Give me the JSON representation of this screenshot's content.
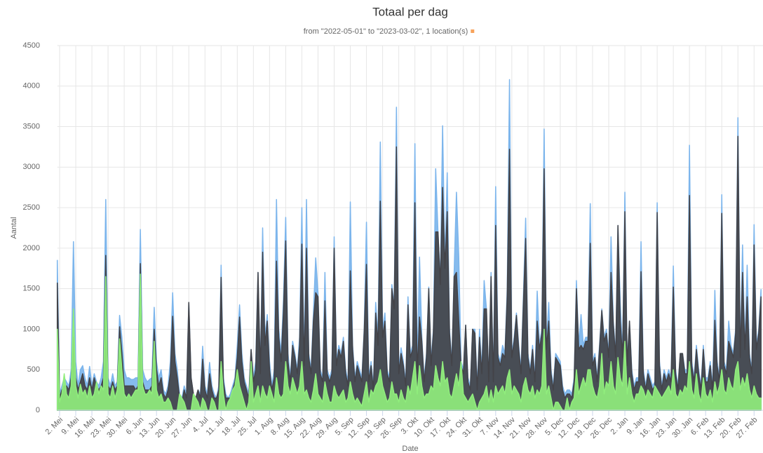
{
  "chart_data": {
    "type": "area",
    "title": "Totaal per dag",
    "subtitle": "from \"2022-05-01\" to \"2023-03-02\", 1 location(s)",
    "xlabel": "Date",
    "ylabel": "Aantal",
    "ylim": [
      0,
      4500
    ],
    "yticks": [
      0,
      500,
      1000,
      1500,
      2000,
      2500,
      3000,
      3500,
      4000,
      4500
    ],
    "grid": true,
    "categories": [
      null,
      "2. Mei",
      null,
      null,
      null,
      null,
      null,
      null,
      "9. Mei",
      null,
      null,
      null,
      null,
      null,
      null,
      "16. Mei",
      null,
      null,
      null,
      null,
      null,
      null,
      "23. Mei",
      null,
      null,
      null,
      null,
      null,
      null,
      "30. Mei",
      null,
      null,
      null,
      null,
      null,
      null,
      "6. Jun",
      null,
      null,
      null,
      null,
      null,
      null,
      "13. Jun",
      null,
      null,
      null,
      null,
      null,
      null,
      "20. Jun",
      null,
      null,
      null,
      null,
      null,
      null,
      "27. Jun",
      null,
      null,
      null,
      null,
      null,
      null,
      "4. Jul",
      null,
      null,
      null,
      null,
      null,
      null,
      "11. Jul",
      null,
      null,
      null,
      null,
      null,
      null,
      "18. Jul",
      null,
      null,
      null,
      null,
      null,
      null,
      "25. Jul",
      null,
      null,
      null,
      null,
      null,
      null,
      "1. Aug",
      null,
      null,
      null,
      null,
      null,
      null,
      "8. Aug",
      null,
      null,
      null,
      null,
      null,
      null,
      "15. Aug",
      null,
      null,
      null,
      null,
      null,
      null,
      "22. Aug",
      null,
      null,
      null,
      null,
      null,
      null,
      "29. Aug",
      null,
      null,
      null,
      null,
      null,
      null,
      "5. Sep",
      null,
      null,
      null,
      null,
      null,
      null,
      "12. Sep",
      null,
      null,
      null,
      null,
      null,
      null,
      "19. Sep",
      null,
      null,
      null,
      null,
      null,
      null,
      "26. Sep",
      null,
      null,
      null,
      null,
      null,
      null,
      "3. Okt",
      null,
      null,
      null,
      null,
      null,
      null,
      "10. Okt",
      null,
      null,
      null,
      null,
      null,
      null,
      "17. Okt",
      null,
      null,
      null,
      null,
      null,
      null,
      "24. Okt",
      null,
      null,
      null,
      null,
      null,
      null,
      "31. Okt",
      null,
      null,
      null,
      null,
      null,
      null,
      "7. Nov",
      null,
      null,
      null,
      null,
      null,
      null,
      "14. Nov",
      null,
      null,
      null,
      null,
      null,
      null,
      "21. Nov",
      null,
      null,
      null,
      null,
      null,
      null,
      "28. Nov",
      null,
      null,
      null,
      null,
      null,
      null,
      "5. Dec",
      null,
      null,
      null,
      null,
      null,
      null,
      "12. Dec",
      null,
      null,
      null,
      null,
      null,
      null,
      "19. Dec",
      null,
      null,
      null,
      null,
      null,
      null,
      "26. Dec",
      null,
      null,
      null,
      null,
      null,
      null,
      "2. Jan",
      null,
      null,
      null,
      null,
      null,
      null,
      "9. Jan",
      null,
      null,
      null,
      null,
      null,
      null,
      "16. Jan",
      null,
      null,
      null,
      null,
      null,
      null,
      "23. Jan",
      null,
      null,
      null,
      null,
      null,
      null,
      "30. Jan",
      null,
      null,
      null,
      null,
      null,
      null,
      "6. Feb",
      null,
      null,
      null,
      null,
      null,
      null,
      "13. Feb",
      null,
      null,
      null,
      null,
      null,
      null,
      "20. Feb",
      null,
      null,
      null,
      null,
      null,
      null,
      "27. Feb",
      null,
      null,
      null
    ],
    "series": [
      {
        "color": "#7cb5ec",
        "values": [
          1850,
          200,
          300,
          400,
          350,
          300,
          500,
          2080,
          600,
          300,
          500,
          550,
          400,
          300,
          540,
          300,
          450,
          350,
          300,
          400,
          600,
          2600,
          400,
          300,
          450,
          300,
          350,
          1170,
          900,
          500,
          400,
          400,
          380,
          380,
          400,
          400,
          2230,
          500,
          400,
          350,
          380,
          400,
          1270,
          600,
          400,
          500,
          250,
          200,
          300,
          600,
          1450,
          700,
          500,
          200,
          150,
          300,
          200,
          1330,
          400,
          200,
          150,
          250,
          200,
          790,
          300,
          200,
          590,
          300,
          200,
          150,
          300,
          1790,
          400,
          200,
          150,
          200,
          300,
          400,
          800,
          1300,
          700,
          400,
          300,
          200,
          750,
          400,
          600,
          1700,
          500,
          2250,
          900,
          1180,
          600,
          300,
          500,
          2600,
          1000,
          700,
          1350,
          2380,
          700,
          400,
          850,
          700,
          500,
          900,
          2500,
          600,
          2600,
          700,
          500,
          1200,
          1880,
          1450,
          500,
          400,
          1700,
          500,
          400,
          500,
          2140,
          600,
          800,
          700,
          900,
          500,
          350,
          2570,
          800,
          400,
          600,
          500,
          400,
          1000,
          2320,
          400,
          600,
          300,
          1330,
          900,
          3310,
          1000,
          1200,
          500,
          400,
          1550,
          1300,
          3740,
          500,
          770,
          600,
          350,
          1400,
          700,
          800,
          3290,
          500,
          1890,
          900,
          400,
          700,
          1520,
          600,
          1000,
          2980,
          2200,
          1600,
          3510,
          1800,
          2930,
          1000,
          600,
          1700,
          2690,
          1900,
          600,
          500,
          1050,
          400,
          300,
          1000,
          1000,
          300,
          1000,
          500,
          1600,
          1250,
          400,
          1700,
          400,
          2760,
          700,
          600,
          800,
          700,
          1500,
          4080,
          700,
          900,
          1200,
          800,
          500,
          1400,
          2370,
          700,
          500,
          800,
          400,
          1470,
          800,
          1000,
          3470,
          800,
          1330,
          500,
          300,
          700,
          650,
          600,
          300,
          200,
          250,
          250,
          200,
          400,
          1600,
          800,
          1180,
          800,
          900,
          900,
          2550,
          600,
          700,
          400,
          800,
          1250,
          900,
          1000,
          700,
          2140,
          1100,
          700,
          2280,
          1330,
          700,
          2690,
          600,
          1100,
          500,
          300,
          400,
          400,
          2080,
          500,
          300,
          500,
          400,
          300,
          350,
          2560,
          600,
          300,
          500,
          400,
          500,
          400,
          1780,
          500,
          300,
          700,
          700,
          500,
          500,
          3270,
          600,
          400,
          800,
          500,
          300,
          800,
          400,
          400,
          600,
          300,
          1480,
          600,
          400,
          2660,
          600,
          500,
          1100,
          800,
          700,
          1000,
          3610,
          700,
          2040,
          800,
          1790,
          700,
          500,
          2290,
          800,
          1000,
          1490
        ]
      },
      {
        "color": "#434348",
        "values": [
          1570,
          150,
          250,
          300,
          300,
          250,
          400,
          900,
          400,
          250,
          350,
          450,
          300,
          250,
          400,
          250,
          400,
          300,
          250,
          300,
          400,
          1910,
          300,
          250,
          350,
          250,
          300,
          1030,
          700,
          300,
          300,
          300,
          300,
          300,
          250,
          300,
          1810,
          350,
          250,
          250,
          250,
          300,
          1000,
          500,
          300,
          400,
          200,
          150,
          250,
          450,
          1160,
          600,
          400,
          150,
          100,
          250,
          150,
          1330,
          400,
          200,
          150,
          250,
          150,
          630,
          250,
          150,
          450,
          250,
          150,
          150,
          250,
          1640,
          350,
          150,
          150,
          150,
          250,
          350,
          650,
          1150,
          600,
          350,
          250,
          150,
          750,
          350,
          500,
          1700,
          450,
          1950,
          800,
          1100,
          500,
          250,
          400,
          1840,
          900,
          600,
          1200,
          2090,
          600,
          350,
          800,
          650,
          450,
          800,
          2050,
          550,
          2000,
          650,
          450,
          1100,
          1450,
          1400,
          450,
          350,
          1350,
          450,
          350,
          450,
          2000,
          550,
          750,
          650,
          850,
          450,
          300,
          1720,
          750,
          350,
          550,
          450,
          350,
          950,
          1800,
          350,
          550,
          250,
          1200,
          800,
          2580,
          900,
          1100,
          450,
          350,
          1500,
          1250,
          3250,
          450,
          700,
          550,
          300,
          1300,
          650,
          750,
          2560,
          450,
          1150,
          850,
          350,
          650,
          1500,
          550,
          950,
          2200,
          2200,
          1550,
          2750,
          1750,
          2450,
          950,
          550,
          1650,
          1700,
          1100,
          550,
          450,
          1050,
          350,
          250,
          1000,
          950,
          250,
          900,
          450,
          1250,
          1250,
          350,
          1650,
          350,
          2280,
          650,
          550,
          700,
          650,
          1400,
          3220,
          650,
          850,
          1170,
          750,
          450,
          1300,
          2120,
          650,
          450,
          750,
          350,
          1100,
          750,
          950,
          2980,
          750,
          1100,
          450,
          250,
          650,
          600,
          550,
          250,
          150,
          200,
          200,
          150,
          350,
          1500,
          750,
          800,
          750,
          850,
          850,
          2060,
          550,
          650,
          350,
          750,
          1230,
          850,
          950,
          650,
          1700,
          1050,
          650,
          2280,
          1100,
          650,
          2450,
          550,
          1100,
          450,
          250,
          350,
          350,
          1710,
          450,
          250,
          450,
          350,
          250,
          300,
          2440,
          550,
          250,
          450,
          350,
          450,
          350,
          1520,
          450,
          250,
          700,
          700,
          450,
          450,
          2650,
          550,
          350,
          750,
          450,
          250,
          750,
          350,
          350,
          550,
          250,
          1110,
          550,
          350,
          2430,
          550,
          450,
          850,
          750,
          650,
          950,
          3380,
          650,
          1700,
          750,
          1400,
          650,
          450,
          2040,
          750,
          950,
          1400
        ]
      },
      {
        "color": "#90ed7d",
        "values": [
          1000,
          100,
          200,
          450,
          200,
          150,
          300,
          1250,
          300,
          150,
          320,
          200,
          250,
          150,
          300,
          150,
          200,
          350,
          200,
          300,
          250,
          1650,
          200,
          150,
          300,
          150,
          250,
          880,
          500,
          200,
          150,
          200,
          150,
          200,
          250,
          250,
          1680,
          300,
          200,
          200,
          250,
          200,
          850,
          250,
          150,
          200,
          100,
          100,
          150,
          100,
          0,
          0,
          0,
          200,
          150,
          100,
          0,
          0,
          0,
          200,
          150,
          100,
          0,
          150,
          100,
          0,
          0,
          150,
          100,
          0,
          0,
          600,
          200,
          0,
          100,
          150,
          250,
          300,
          500,
          300,
          200,
          100,
          0,
          100,
          600,
          100,
          200,
          300,
          100,
          300,
          200,
          150,
          300,
          200,
          100,
          400,
          200,
          150,
          200,
          600,
          300,
          200,
          400,
          300,
          200,
          300,
          600,
          200,
          250,
          150,
          100,
          250,
          450,
          200,
          150,
          100,
          350,
          200,
          100,
          100,
          300,
          200,
          150,
          200,
          250,
          100,
          150,
          350,
          200,
          100,
          150,
          100,
          50,
          200,
          350,
          100,
          250,
          200,
          300,
          350,
          500,
          300,
          200,
          100,
          150,
          350,
          200,
          200,
          100,
          250,
          150,
          100,
          300,
          200,
          400,
          600,
          200,
          550,
          300,
          150,
          200,
          200,
          300,
          250,
          550,
          400,
          300,
          600,
          350,
          400,
          200,
          150,
          300,
          450,
          300,
          600,
          200,
          150,
          100,
          150,
          200,
          100,
          0,
          100,
          150,
          200,
          300,
          100,
          250,
          100,
          300,
          200,
          250,
          300,
          200,
          400,
          500,
          200,
          300,
          250,
          200,
          100,
          300,
          400,
          250,
          200,
          300,
          150,
          250,
          200,
          300,
          1000,
          200,
          300,
          150,
          0,
          100,
          100,
          50,
          0,
          0,
          150,
          0,
          100,
          150,
          500,
          200,
          300,
          400,
          300,
          500,
          500,
          300,
          200,
          150,
          300,
          700,
          200,
          350,
          300,
          600,
          300,
          200,
          650,
          400,
          300,
          850,
          200,
          400,
          200,
          100,
          200,
          200,
          300,
          250,
          150,
          250,
          200,
          150,
          300,
          250,
          200,
          150,
          200,
          250,
          300,
          200,
          500,
          200,
          150,
          250,
          200,
          300,
          250,
          600,
          250,
          150,
          450,
          200,
          100,
          400,
          200,
          150,
          250,
          100,
          350,
          200,
          300,
          500,
          250,
          200,
          400,
          300,
          250,
          500,
          600,
          250,
          400,
          300,
          450,
          250,
          150,
          300,
          200,
          150,
          150
        ]
      }
    ]
  }
}
